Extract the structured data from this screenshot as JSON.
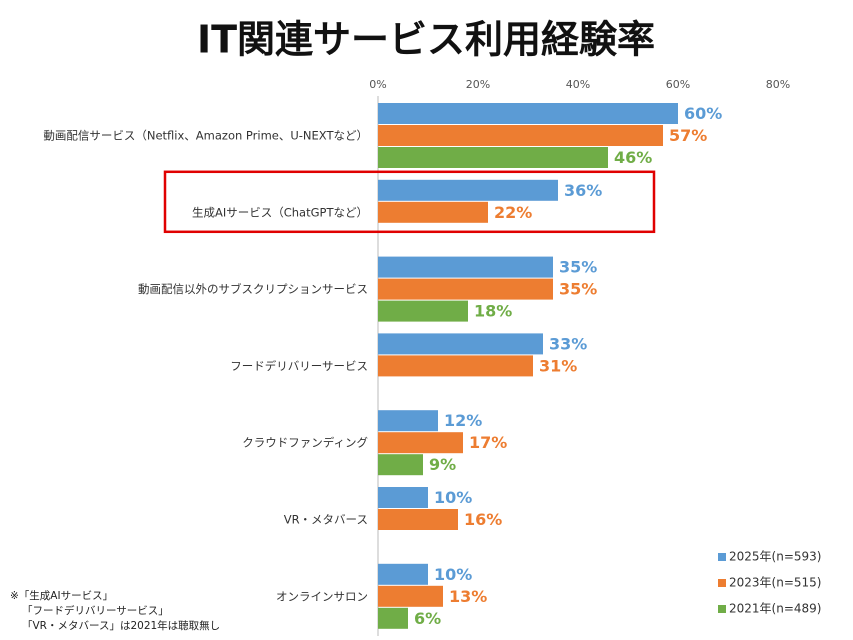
{
  "chart_data": {
    "type": "bar",
    "orientation": "horizontal",
    "title": "IT関連サービス利用経験率",
    "categories": [
      "動画配信サービス（Netflix、Amazon Prime、U-NEXTなど）",
      "生成AIサービス（ChatGPTなど）",
      "動画配信以外のサブスクリプションサービス",
      "フードデリバリーサービス",
      "クラウドファンディング",
      "VR・メタバース",
      "オンラインサロン"
    ],
    "series": [
      {
        "name": "2025年(n=593)",
        "color": "#5b9bd5",
        "values": [
          60,
          36,
          35,
          33,
          12,
          10,
          10
        ],
        "value_labels": [
          "60%",
          "36%",
          "35%",
          "33%",
          "12%",
          "10%",
          "10%"
        ]
      },
      {
        "name": "2023年(n=515)",
        "color": "#ed7d31",
        "values": [
          57,
          22,
          35,
          31,
          17,
          16,
          13
        ],
        "value_labels": [
          "57%",
          "22%",
          "35%",
          "31%",
          "17%",
          "16%",
          "13%"
        ]
      },
      {
        "name": "2021年(n=489)",
        "color": "#70ad47",
        "values": [
          46,
          null,
          18,
          null,
          9,
          null,
          6
        ],
        "value_labels": [
          "46%",
          null,
          "18%",
          null,
          "9%",
          null,
          "6%"
        ]
      }
    ],
    "xlim": [
      0,
      80
    ],
    "xticks": [
      {
        "value": 0,
        "label": "0%"
      },
      {
        "value": 20,
        "label": "20%"
      },
      {
        "value": 40,
        "label": "40%"
      },
      {
        "value": 60,
        "label": "60%"
      },
      {
        "value": 80,
        "label": "80%"
      }
    ],
    "legend": "bottom-right",
    "highlight_category": 1,
    "footnote": [
      "※「生成AIサービス」",
      "「フードデリバリーサービス」",
      "「VR・メタバース」は2021年は聴取無し"
    ]
  }
}
